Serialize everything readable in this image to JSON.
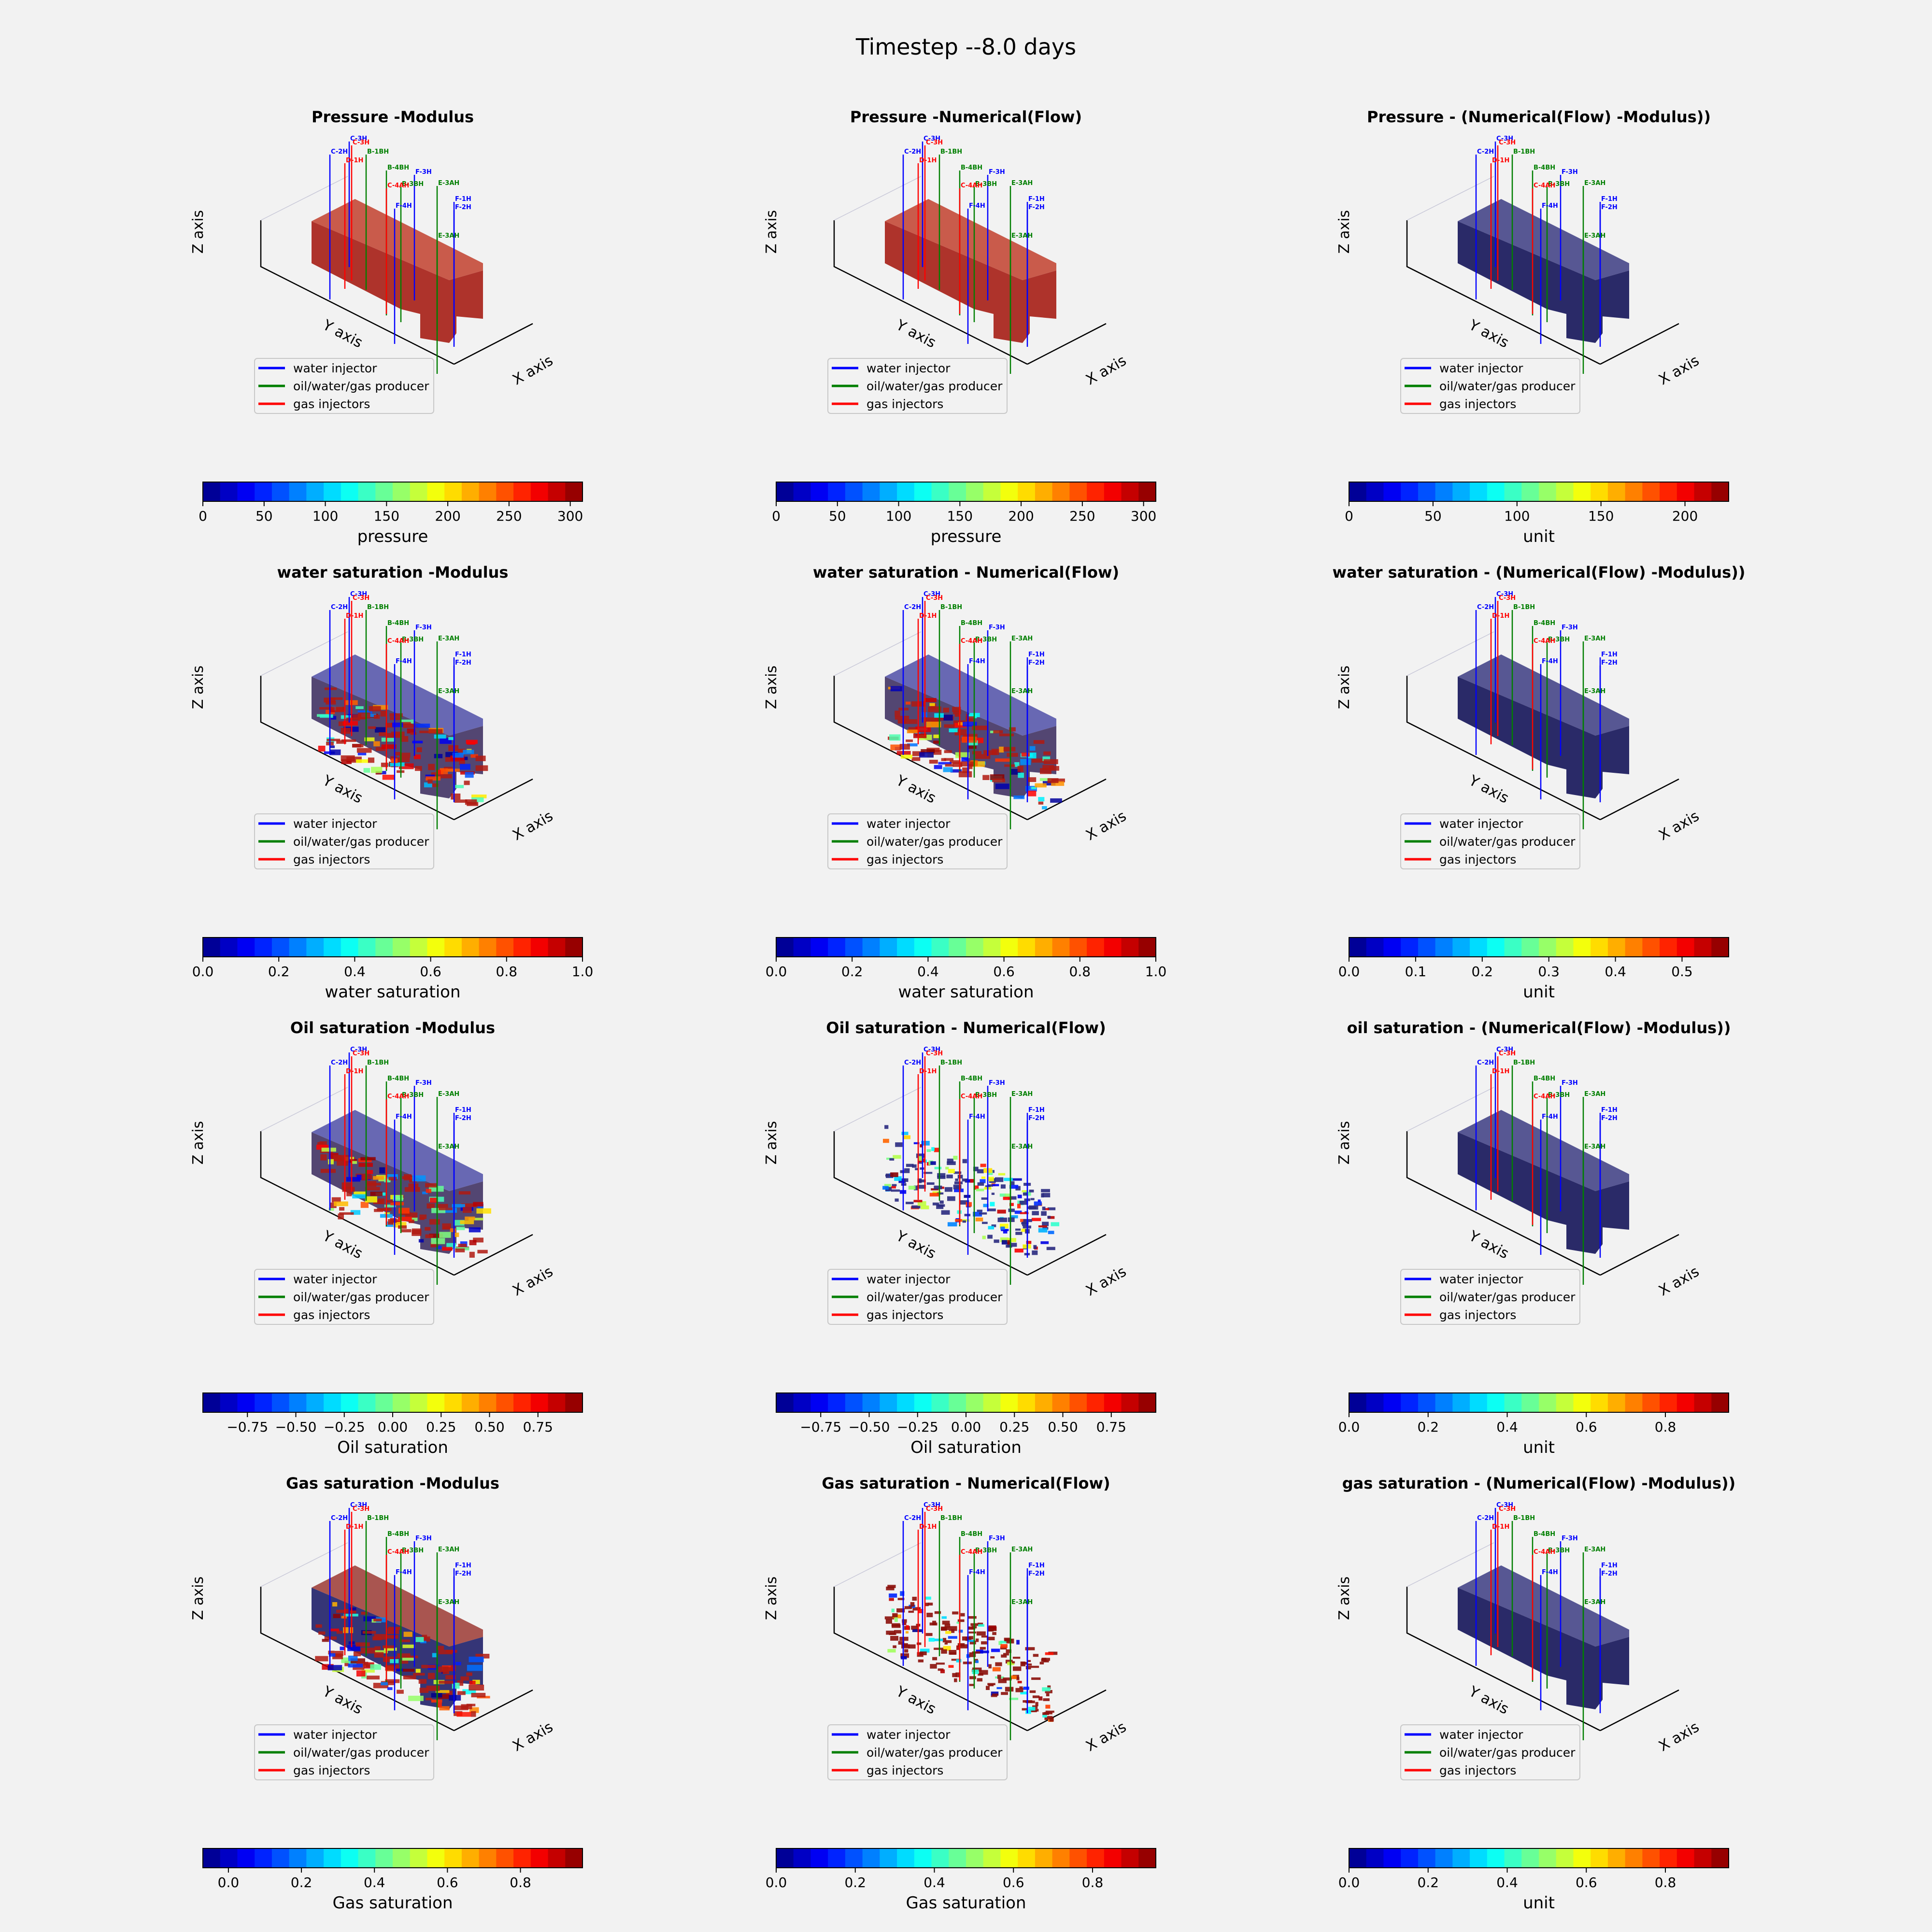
{
  "suptitle": "Timestep --8.0 days",
  "colors": {
    "background": "#f2f2f2",
    "water_injector": "#0000ff",
    "producer": "#007f00",
    "gas_injector": "#ff0000",
    "uniform_block": "#1f1f60",
    "pressure_block": "#b22a1e"
  },
  "legend": [
    {
      "label": "water injector",
      "color": "#0000ff"
    },
    {
      "label": "oil/water/gas producer",
      "color": "#007f00"
    },
    {
      "label": "gas injectors",
      "color": "#ff0000"
    }
  ],
  "axis_labels": {
    "x": "X axis",
    "y": "Y axis",
    "z": "Z axis"
  },
  "wells": [
    {
      "name": "C-3H",
      "type": "water_injector"
    },
    {
      "name": "C-3H",
      "type": "gas_injector"
    },
    {
      "name": "C-2H",
      "type": "water_injector"
    },
    {
      "name": "D-1H",
      "type": "gas_injector"
    },
    {
      "name": "B-1BH",
      "type": "producer"
    },
    {
      "name": "B-4BH",
      "type": "producer"
    },
    {
      "name": "F-3H",
      "type": "water_injector"
    },
    {
      "name": "B-3BH",
      "type": "producer"
    },
    {
      "name": "E-3AH",
      "type": "producer"
    },
    {
      "name": "C-4AH",
      "type": "gas_injector"
    },
    {
      "name": "F-4H",
      "type": "water_injector"
    },
    {
      "name": "F-1H",
      "type": "water_injector"
    },
    {
      "name": "F-2H",
      "type": "water_injector"
    },
    {
      "name": "E-3AH",
      "type": "producer"
    }
  ],
  "chart_data": [
    {
      "type": "heatmap",
      "title": "Pressure -Modulus",
      "colorbar_label": "pressure",
      "ticks": [
        0,
        50,
        100,
        150,
        200,
        250,
        300
      ],
      "tick_labels": [
        "0",
        "50",
        "100",
        "150",
        "200",
        "250",
        "300"
      ],
      "range": [
        0,
        310
      ],
      "style": "pressure"
    },
    {
      "type": "heatmap",
      "title": "Pressure -Numerical(Flow)",
      "colorbar_label": "pressure",
      "ticks": [
        0,
        50,
        100,
        150,
        200,
        250,
        300
      ],
      "tick_labels": [
        "0",
        "50",
        "100",
        "150",
        "200",
        "250",
        "300"
      ],
      "range": [
        0,
        310
      ],
      "style": "pressure"
    },
    {
      "type": "heatmap",
      "title": "Pressure - (Numerical(Flow) -Modulus))",
      "colorbar_label": "unit",
      "ticks": [
        0,
        50,
        100,
        150,
        200
      ],
      "tick_labels": [
        "0",
        "50",
        "100",
        "150",
        "200"
      ],
      "range": [
        0,
        226
      ],
      "style": "uniform"
    },
    {
      "type": "heatmap",
      "title": "water saturation -Modulus",
      "colorbar_label": "water saturation",
      "ticks": [
        0,
        0.2,
        0.4,
        0.6,
        0.8,
        1.0
      ],
      "tick_labels": [
        "0.0",
        "0.2",
        "0.4",
        "0.6",
        "0.8",
        "1.0"
      ],
      "range": [
        0,
        1.0
      ],
      "style": "mixed"
    },
    {
      "type": "heatmap",
      "title": "water saturation - Numerical(Flow)",
      "colorbar_label": "water saturation",
      "ticks": [
        0,
        0.2,
        0.4,
        0.6,
        0.8,
        1.0
      ],
      "tick_labels": [
        "0.0",
        "0.2",
        "0.4",
        "0.6",
        "0.8",
        "1.0"
      ],
      "range": [
        0,
        1.0
      ],
      "style": "mixed"
    },
    {
      "type": "heatmap",
      "title": "water saturation - (Numerical(Flow) -Modulus))",
      "colorbar_label": "unit",
      "ticks": [
        0,
        0.1,
        0.2,
        0.3,
        0.4,
        0.5
      ],
      "tick_labels": [
        "0.0",
        "0.1",
        "0.2",
        "0.3",
        "0.4",
        "0.5"
      ],
      "range": [
        0,
        0.57
      ],
      "style": "uniform"
    },
    {
      "type": "heatmap",
      "title": "Oil saturation -Modulus",
      "colorbar_label": "Oil saturation",
      "ticks": [
        -0.75,
        -0.5,
        -0.25,
        0,
        0.25,
        0.5,
        0.75
      ],
      "tick_labels": [
        "−0.75",
        "−0.50",
        "−0.25",
        "0.00",
        "0.25",
        "0.50",
        "0.75"
      ],
      "range": [
        -0.98,
        0.98
      ],
      "style": "mixed"
    },
    {
      "type": "heatmap",
      "title": "Oil saturation - Numerical(Flow)",
      "colorbar_label": "Oil saturation",
      "ticks": [
        -0.75,
        -0.5,
        -0.25,
        0,
        0.25,
        0.5,
        0.75
      ],
      "tick_labels": [
        "−0.75",
        "−0.50",
        "−0.25",
        "0.00",
        "0.25",
        "0.50",
        "0.75"
      ],
      "range": [
        -0.98,
        0.98
      ],
      "style": "sparse"
    },
    {
      "type": "heatmap",
      "title": "oil saturation - (Numerical(Flow) -Modulus))",
      "colorbar_label": "unit",
      "ticks": [
        0,
        0.2,
        0.4,
        0.6,
        0.8
      ],
      "tick_labels": [
        "0.0",
        "0.2",
        "0.4",
        "0.6",
        "0.8"
      ],
      "range": [
        0,
        0.96
      ],
      "style": "uniform"
    },
    {
      "type": "heatmap",
      "title": "Gas saturation -Modulus",
      "colorbar_label": "Gas saturation",
      "ticks": [
        0,
        0.2,
        0.4,
        0.6,
        0.8
      ],
      "tick_labels": [
        "0.0",
        "0.2",
        "0.4",
        "0.6",
        "0.8"
      ],
      "range": [
        -0.07,
        0.97
      ],
      "style": "gasmix"
    },
    {
      "type": "heatmap",
      "title": "Gas saturation - Numerical(Flow)",
      "colorbar_label": "Gas saturation",
      "ticks": [
        0,
        0.2,
        0.4,
        0.6,
        0.8
      ],
      "tick_labels": [
        "0.0",
        "0.2",
        "0.4",
        "0.6",
        "0.8"
      ],
      "range": [
        0,
        0.96
      ],
      "style": "sparse_red"
    },
    {
      "type": "heatmap",
      "title": "gas saturation - (Numerical(Flow) -Modulus))",
      "colorbar_label": "unit",
      "ticks": [
        0,
        0.2,
        0.4,
        0.6,
        0.8
      ],
      "tick_labels": [
        "0.0",
        "0.2",
        "0.4",
        "0.6",
        "0.8"
      ],
      "range": [
        0,
        0.96
      ],
      "style": "uniform"
    }
  ]
}
